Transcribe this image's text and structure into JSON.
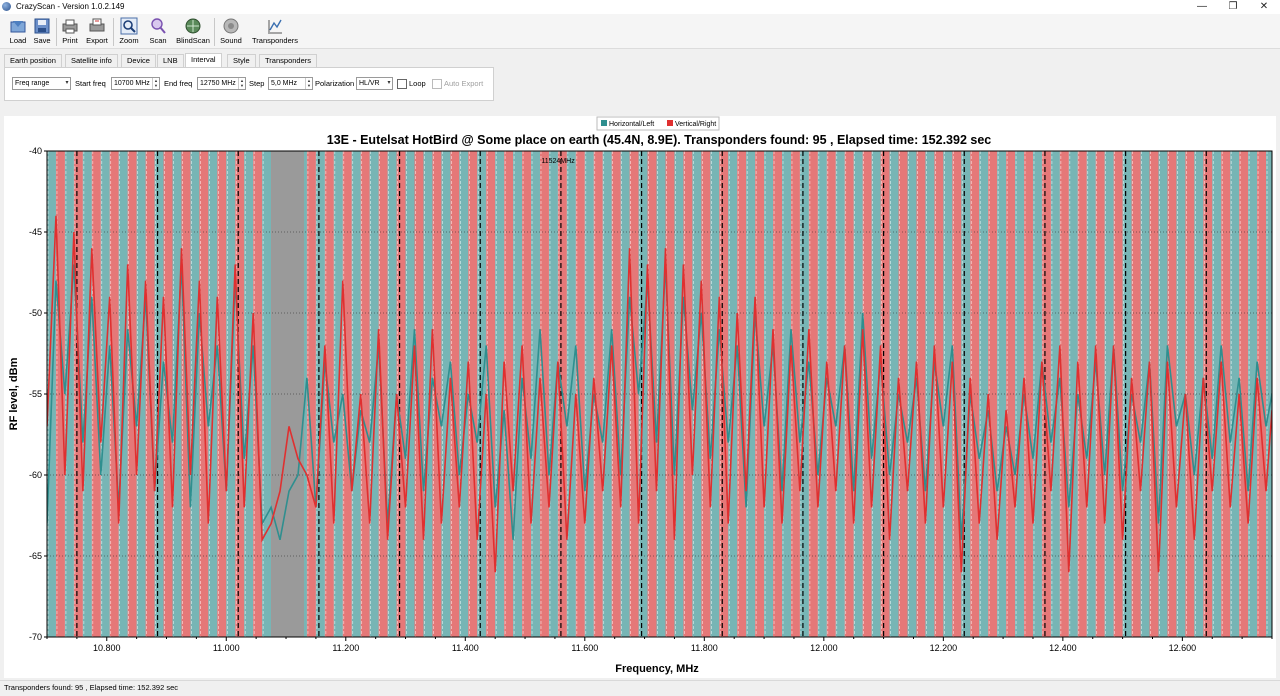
{
  "window": {
    "title": "CrazyScan - Version 1.0.2.149",
    "minimize": "—",
    "maximize": "❐",
    "close": "✕"
  },
  "toolbar": {
    "buttons": [
      {
        "id": "load",
        "label": "Load",
        "icon": "load-icon"
      },
      {
        "id": "save",
        "label": "Save",
        "icon": "save-icon"
      },
      {
        "id": "print",
        "label": "Print",
        "icon": "print-icon"
      },
      {
        "id": "export",
        "label": "Export",
        "icon": "export-icon"
      },
      {
        "id": "zoom",
        "label": "Zoom",
        "icon": "zoom-icon"
      },
      {
        "id": "scan",
        "label": "Scan",
        "icon": "scan-icon"
      },
      {
        "id": "blindscan",
        "label": "BlindScan",
        "icon": "blindscan-icon"
      },
      {
        "id": "sound",
        "label": "Sound",
        "icon": "sound-icon"
      },
      {
        "id": "transponders",
        "label": "Transponders",
        "icon": "transponders-icon"
      }
    ]
  },
  "tabs": {
    "items": [
      "Earth position",
      "Satellite info",
      "Device",
      "LNB",
      "Interval",
      "Style",
      "Transponders"
    ],
    "active": "Interval"
  },
  "interval": {
    "mode": "Freq range",
    "start_label": "Start freq",
    "start_value": "10700 MHz",
    "end_label": "End freq",
    "end_value": "12750 MHz",
    "step_label": "Step",
    "step_value": "5,0 MHz",
    "polarization_label": "Polarization",
    "polarization_value": "HL/VR",
    "loop_label": "Loop",
    "loop_checked": false,
    "auto_export_label": "Auto Export",
    "auto_export_enabled": false
  },
  "chart_data": {
    "type": "line",
    "title": "13E - Eutelsat HotBird @ Some place on earth (45.4N, 8.9E). Transponders found: 95 , Elapsed time: 152.392 sec",
    "xlabel": "Frequency, MHz",
    "ylabel": "RF level, dBm",
    "xlim": [
      10700,
      12750
    ],
    "ylim": [
      -70,
      -40
    ],
    "x_ticks": [
      10800,
      11000,
      11200,
      11400,
      11600,
      11800,
      12000,
      12200,
      12400,
      12600
    ],
    "x_tick_labels": [
      "10.800",
      "11.000",
      "11.200",
      "11.400",
      "11.600",
      "11.800",
      "12.000",
      "12.200",
      "12.400",
      "12.600"
    ],
    "y_ticks": [
      -40,
      -45,
      -50,
      -55,
      -60,
      -65,
      -70
    ],
    "y_tick_labels": [
      "-40",
      "-45",
      "-50",
      "-55",
      "-60",
      "-65",
      "-70"
    ],
    "grid": true,
    "legend_position": "top-center",
    "annotation": "11524MHz",
    "annotation_x": 11524,
    "gap_band": [
      11075,
      11130
    ],
    "series": [
      {
        "name": "Horizontal/Left",
        "color": "#2f8f8f",
        "band_color": "#5fa8a8",
        "x": [
          10700,
          10715,
          10730,
          10745,
          10760,
          10775,
          10790,
          10805,
          10820,
          10835,
          10850,
          10865,
          10880,
          10895,
          10910,
          10925,
          10940,
          10955,
          10970,
          10985,
          11000,
          11015,
          11030,
          11045,
          11060,
          11075,
          11090,
          11105,
          11120,
          11135,
          11150,
          11165,
          11180,
          11195,
          11210,
          11225,
          11240,
          11255,
          11270,
          11285,
          11300,
          11315,
          11330,
          11345,
          11360,
          11375,
          11390,
          11405,
          11420,
          11435,
          11450,
          11465,
          11480,
          11495,
          11510,
          11525,
          11540,
          11555,
          11570,
          11585,
          11600,
          11615,
          11630,
          11645,
          11660,
          11675,
          11690,
          11705,
          11720,
          11735,
          11750,
          11765,
          11780,
          11795,
          11810,
          11825,
          11840,
          11855,
          11870,
          11885,
          11900,
          11915,
          11930,
          11945,
          11960,
          11975,
          11990,
          12005,
          12020,
          12035,
          12050,
          12065,
          12080,
          12095,
          12110,
          12125,
          12140,
          12155,
          12170,
          12185,
          12200,
          12215,
          12230,
          12245,
          12260,
          12275,
          12290,
          12305,
          12320,
          12335,
          12350,
          12365,
          12380,
          12395,
          12410,
          12425,
          12440,
          12455,
          12470,
          12485,
          12500,
          12515,
          12530,
          12545,
          12560,
          12575,
          12590,
          12605,
          12620,
          12635,
          12650,
          12665,
          12680,
          12695,
          12710,
          12725,
          12740,
          12750
        ],
        "y": [
          -63,
          -48,
          -55,
          -47,
          -58,
          -49,
          -60,
          -52,
          -62,
          -51,
          -57,
          -49,
          -61,
          -53,
          -58,
          -47,
          -62,
          -50,
          -57,
          -52,
          -61,
          -48,
          -59,
          -52,
          -63,
          -62,
          -64,
          -61,
          -60,
          -54,
          -62,
          -53,
          -58,
          -55,
          -61,
          -56,
          -58,
          -52,
          -63,
          -55,
          -59,
          -51,
          -61,
          -54,
          -57,
          -53,
          -60,
          -55,
          -58,
          -52,
          -62,
          -56,
          -64,
          -54,
          -59,
          -51,
          -60,
          -53,
          -57,
          -52,
          -61,
          -55,
          -58,
          -51,
          -60,
          -49,
          -55,
          -48,
          -58,
          -47,
          -60,
          -49,
          -56,
          -50,
          -59,
          -51,
          -58,
          -52,
          -62,
          -50,
          -57,
          -52,
          -61,
          -51,
          -58,
          -53,
          -60,
          -54,
          -57,
          -52,
          -61,
          -50,
          -59,
          -53,
          -60,
          -55,
          -58,
          -54,
          -61,
          -53,
          -57,
          -52,
          -64,
          -55,
          -59,
          -56,
          -61,
          -57,
          -60,
          -55,
          -59,
          -53,
          -58,
          -54,
          -62,
          -55,
          -59,
          -53,
          -60,
          -52,
          -61,
          -55,
          -58,
          -53,
          -63,
          -52,
          -57,
          -55,
          -60,
          -54,
          -59,
          -52,
          -58,
          -54,
          -61,
          -53,
          -57,
          -55
        ]
      },
      {
        "name": "Vertical/Right",
        "color": "#e03030",
        "band_color": "#e06060",
        "x": [
          10700,
          10715,
          10730,
          10745,
          10760,
          10775,
          10790,
          10805,
          10820,
          10835,
          10850,
          10865,
          10880,
          10895,
          10910,
          10925,
          10940,
          10955,
          10970,
          10985,
          11000,
          11015,
          11030,
          11045,
          11060,
          11075,
          11090,
          11105,
          11120,
          11135,
          11150,
          11165,
          11180,
          11195,
          11210,
          11225,
          11240,
          11255,
          11270,
          11285,
          11300,
          11315,
          11330,
          11345,
          11360,
          11375,
          11390,
          11405,
          11420,
          11435,
          11450,
          11465,
          11480,
          11495,
          11510,
          11525,
          11540,
          11555,
          11570,
          11585,
          11600,
          11615,
          11630,
          11645,
          11660,
          11675,
          11690,
          11705,
          11720,
          11735,
          11750,
          11765,
          11780,
          11795,
          11810,
          11825,
          11840,
          11855,
          11870,
          11885,
          11900,
          11915,
          11930,
          11945,
          11960,
          11975,
          11990,
          12005,
          12020,
          12035,
          12050,
          12065,
          12080,
          12095,
          12110,
          12125,
          12140,
          12155,
          12170,
          12185,
          12200,
          12215,
          12230,
          12245,
          12260,
          12275,
          12290,
          12305,
          12320,
          12335,
          12350,
          12365,
          12380,
          12395,
          12410,
          12425,
          12440,
          12455,
          12470,
          12485,
          12500,
          12515,
          12530,
          12545,
          12560,
          12575,
          12590,
          12605,
          12620,
          12635,
          12650,
          12665,
          12680,
          12695,
          12710,
          12725,
          12740,
          12750
        ],
        "y": [
          -57,
          -44,
          -60,
          -45,
          -61,
          -46,
          -58,
          -49,
          -63,
          -47,
          -60,
          -48,
          -61,
          -49,
          -62,
          -46,
          -60,
          -48,
          -63,
          -49,
          -61,
          -47,
          -62,
          -50,
          -64,
          -63,
          -61,
          -57,
          -59,
          -60,
          -62,
          -52,
          -63,
          -48,
          -61,
          -55,
          -63,
          -51,
          -64,
          -55,
          -62,
          -52,
          -64,
          -51,
          -63,
          -54,
          -62,
          -53,
          -64,
          -55,
          -66,
          -53,
          -61,
          -52,
          -63,
          -54,
          -62,
          -53,
          -64,
          -55,
          -63,
          -54,
          -61,
          -52,
          -62,
          -46,
          -63,
          -47,
          -61,
          -46,
          -64,
          -47,
          -60,
          -48,
          -62,
          -49,
          -63,
          -50,
          -61,
          -49,
          -62,
          -51,
          -63,
          -52,
          -61,
          -51,
          -62,
          -53,
          -61,
          -52,
          -63,
          -51,
          -62,
          -52,
          -64,
          -54,
          -61,
          -53,
          -63,
          -52,
          -62,
          -53,
          -66,
          -54,
          -63,
          -55,
          -64,
          -56,
          -62,
          -54,
          -63,
          -53,
          -61,
          -52,
          -66,
          -53,
          -62,
          -52,
          -63,
          -52,
          -64,
          -54,
          -61,
          -53,
          -66,
          -53,
          -62,
          -55,
          -64,
          -54,
          -61,
          -53,
          -62,
          -55,
          -63,
          -54,
          -61,
          -56
        ]
      }
    ]
  },
  "status": {
    "text": "Transponders found: 95 , Elapsed time: 152.392 sec"
  }
}
